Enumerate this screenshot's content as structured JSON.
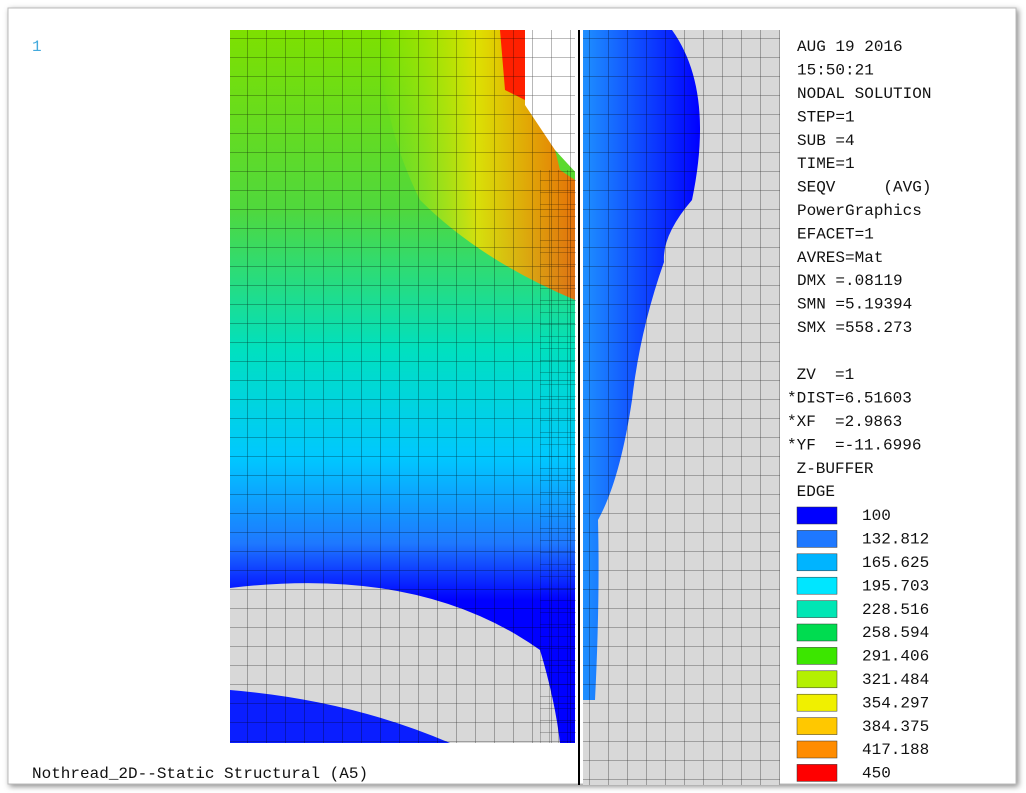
{
  "window_number": "1",
  "info_top": [
    "AUG 19 2016",
    "15:50:21",
    "NODAL SOLUTION",
    "STEP=1",
    "SUB =4",
    "TIME=1",
    "SEQV     (AVG)",
    "PowerGraphics",
    "EFACET=1",
    "AVRES=Mat",
    "DMX =.08119",
    "SMN =5.19394",
    "SMX =558.273"
  ],
  "info_bottom": [
    " ZV  =1",
    "*DIST=6.51603",
    "*XF  =2.9863",
    "*YF  =-11.6996",
    " Z-BUFFER",
    " EDGE"
  ],
  "legend": [
    {
      "label": "100",
      "color": "#0000ff"
    },
    {
      "label": "132.812",
      "color": "#1e78ff"
    },
    {
      "label": "165.625",
      "color": "#00b4ff"
    },
    {
      "label": "195.703",
      "color": "#00e6ff"
    },
    {
      "label": "228.516",
      "color": "#00e6b4"
    },
    {
      "label": "258.594",
      "color": "#00dc50"
    },
    {
      "label": "291.406",
      "color": "#3ce600"
    },
    {
      "label": "321.484",
      "color": "#b4f000"
    },
    {
      "label": "354.297",
      "color": "#f0f000"
    },
    {
      "label": "384.375",
      "color": "#ffc800"
    },
    {
      "label": "417.188",
      "color": "#ff8c00"
    },
    {
      "label": "450",
      "color": "#ff0000"
    }
  ],
  "footer": "Nothread_2D--Static Structural (A5)"
}
